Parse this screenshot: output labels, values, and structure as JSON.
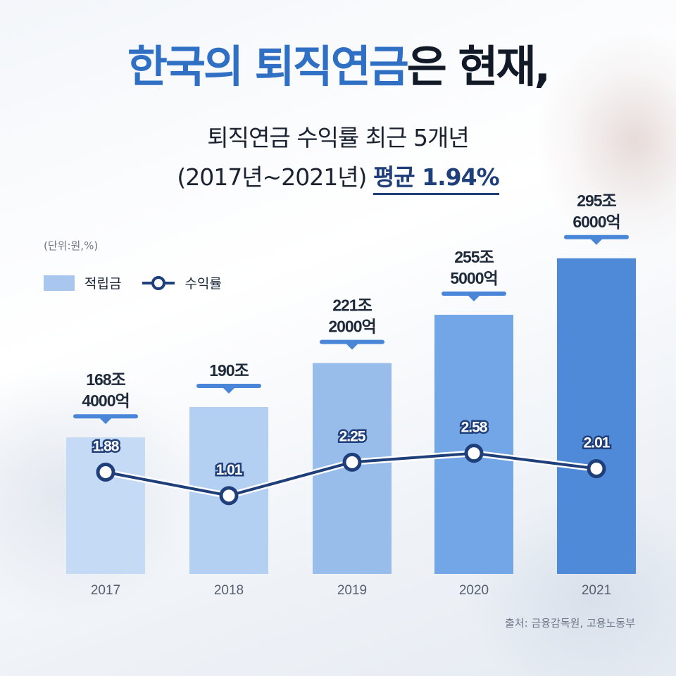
{
  "title": {
    "part_highlight": "한국의 퇴직연금",
    "part_dark": "은 현재,"
  },
  "subtitle": {
    "line1": "퇴직연금 수익률 최근 5개년",
    "line2_prefix": "(2017년~2021년)",
    "line2_avg": "평균 1.94%"
  },
  "unit": "(단위:원,%)",
  "legend": {
    "bar_label": "적립금",
    "line_label": "수익률"
  },
  "source": "출처: 금융감독원, 고용노동부",
  "colors": {
    "title_highlight": "#2f6fc4",
    "line": "#1f3f7a",
    "bars": [
      "#c4daf5",
      "#b3cff2",
      "#98bdeb",
      "#72a6e6",
      "#4f8ad8"
    ],
    "callout_bar": "#4a86d8"
  },
  "chart_data": {
    "type": "bar",
    "categories": [
      "2017",
      "2018",
      "2019",
      "2020",
      "2021"
    ],
    "series": [
      {
        "name": "적립금",
        "type": "bar",
        "values": [
          168.4,
          190,
          221.2,
          255.5,
          295.6
        ],
        "labels": [
          [
            "168조",
            "4000억"
          ],
          [
            "190조"
          ],
          [
            "221조",
            "2000억"
          ],
          [
            "255조",
            "5000억"
          ],
          [
            "295조",
            "6000억"
          ]
        ]
      },
      {
        "name": "수익률",
        "type": "line",
        "values": [
          1.88,
          1.01,
          2.25,
          2.58,
          2.01
        ],
        "labels": [
          "1.88",
          "1.01",
          "2.25",
          "2.58",
          "2.01"
        ]
      }
    ]
  }
}
